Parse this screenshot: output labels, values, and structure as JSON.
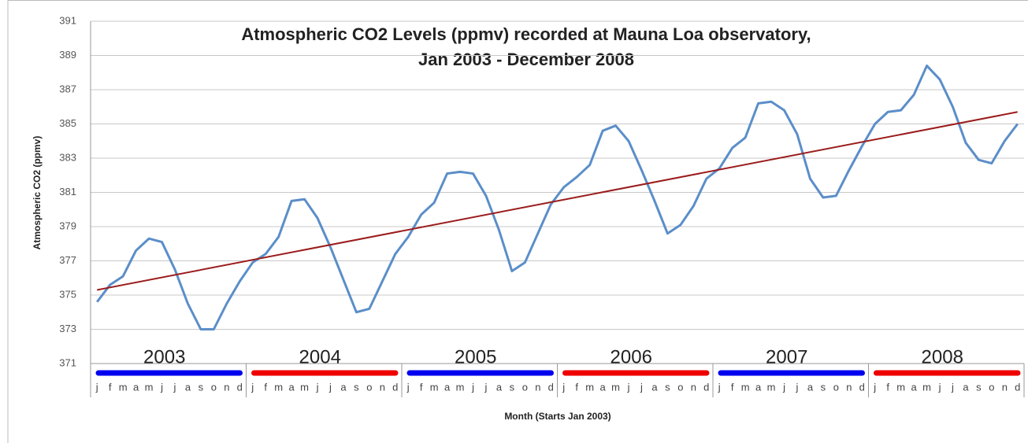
{
  "chart_data": {
    "type": "line",
    "title": "Atmospheric CO2 Levels (ppmv) recorded at Mauna Loa observatory,",
    "subtitle": "Jan 2003 - December 2008",
    "y_label": "Atmospheric CO2 (ppmv)",
    "x_label": "Month (Starts Jan 2003)",
    "categories": [
      "j",
      "f",
      "m",
      "a",
      "m",
      "j",
      "j",
      "a",
      "s",
      "o",
      "n",
      "d",
      "j",
      "f",
      "m",
      "a",
      "m",
      "j",
      "j",
      "a",
      "s",
      "o",
      "n",
      "d",
      "j",
      "f",
      "m",
      "a",
      "m",
      "j",
      "j",
      "a",
      "s",
      "o",
      "n",
      "d",
      "j",
      "f",
      "m",
      "a",
      "m",
      "j",
      "j",
      "a",
      "s",
      "o",
      "n",
      "d",
      "j",
      "f",
      "m",
      "a",
      "m",
      "j",
      "j",
      "a",
      "s",
      "o",
      "n",
      "d",
      "j",
      "f",
      "m",
      "a",
      "m",
      "j",
      "j",
      "a",
      "s",
      "o",
      "n",
      "d"
    ],
    "series": [
      {
        "color": "#5b8ec9",
        "values": [
          374.6,
          375.6,
          376.1,
          377.6,
          378.3,
          378.1,
          376.5,
          374.5,
          373.0,
          373.0,
          374.5,
          375.8,
          376.9,
          377.4,
          378.4,
          380.5,
          380.6,
          379.5,
          377.8,
          375.9,
          374.0,
          374.2,
          375.8,
          377.4,
          378.4,
          379.7,
          380.4,
          382.1,
          382.2,
          382.1,
          380.8,
          378.8,
          376.4,
          376.9,
          378.6,
          380.3,
          381.3,
          381.9,
          382.6,
          384.6,
          384.9,
          384.0,
          382.3,
          380.5,
          378.6,
          379.1,
          380.2,
          381.8,
          382.4,
          383.6,
          384.2,
          386.2,
          386.3,
          385.8,
          384.4,
          381.8,
          380.7,
          380.8,
          382.3,
          383.7,
          385.0,
          385.7,
          385.8,
          386.7,
          388.4,
          387.6,
          386.0,
          383.9,
          382.9,
          382.7,
          384.0,
          385.0
        ]
      }
    ],
    "trendline": {
      "color": "#9b1c1c",
      "start": 375.3,
      "end": 385.7
    },
    "year_groups": [
      {
        "label": "2003",
        "color": "#0000ee"
      },
      {
        "label": "2004",
        "color": "#ee0000"
      },
      {
        "label": "2005",
        "color": "#0000ee"
      },
      {
        "label": "2006",
        "color": "#ee0000"
      },
      {
        "label": "2007",
        "color": "#0000ee"
      },
      {
        "label": "2008",
        "color": "#ee0000"
      }
    ],
    "ylim": [
      371,
      391
    ],
    "yticks": [
      371,
      373,
      375,
      377,
      379,
      381,
      383,
      385,
      387,
      389,
      391
    ],
    "grid": true
  }
}
